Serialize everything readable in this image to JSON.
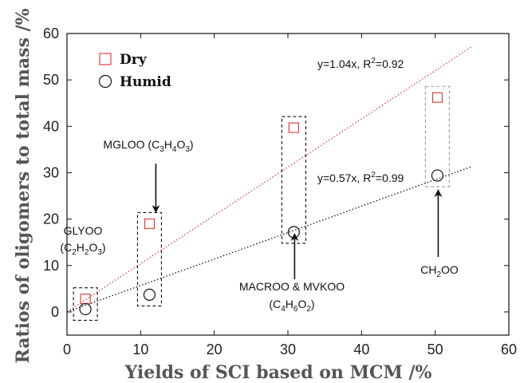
{
  "chart_data": {
    "type": "scatter",
    "xlabel": "Yields of SCI based on MCM /%",
    "ylabel": "Ratios of oligomers to total mass /%",
    "xlim": [
      0,
      60
    ],
    "ylim": [
      -5,
      60
    ],
    "xticks": [
      0,
      10,
      20,
      30,
      40,
      50,
      60
    ],
    "yticks": [
      0,
      10,
      20,
      30,
      40,
      50,
      60
    ],
    "grid": false,
    "legend_position": "top-left",
    "series": [
      {
        "name": "Dry",
        "marker": "square",
        "color": "#e8413c",
        "points": [
          {
            "x": 2.5,
            "y": 2.8
          },
          {
            "x": 11.2,
            "y": 19.0
          },
          {
            "x": 30.8,
            "y": 39.7
          },
          {
            "x": 50.3,
            "y": 46.2
          }
        ],
        "fit": {
          "slope": 1.04,
          "x_end": 55,
          "label": "y=1.04x, R",
          "r2_text": "2",
          "r2_value": "=0.92",
          "style": "dotted"
        }
      },
      {
        "name": "Humid",
        "marker": "circle",
        "color": "#111111",
        "points": [
          {
            "x": 2.5,
            "y": 0.6
          },
          {
            "x": 11.2,
            "y": 3.7
          },
          {
            "x": 30.8,
            "y": 17.2
          },
          {
            "x": 50.3,
            "y": 29.4
          }
        ],
        "fit": {
          "slope": 0.57,
          "x_end": 55,
          "label": "y=0.57x, R",
          "r2_text": "2",
          "r2_value": "=0.99",
          "style": "dotted"
        }
      }
    ],
    "annotations": [
      {
        "id": "glyoo",
        "parts": [
          "GLYOO",
          "(C",
          "2",
          "H",
          "2",
          "O",
          "3",
          ")"
        ]
      },
      {
        "id": "mgloo",
        "parts": [
          "MGLOO (C",
          "3",
          "H",
          "4",
          "O",
          "3",
          ")"
        ]
      },
      {
        "id": "macroo",
        "parts": [
          "MACROO & MVKOO",
          "(C",
          "4",
          "H",
          "6",
          "O",
          "2",
          ")"
        ]
      },
      {
        "id": "ch2oo",
        "parts": [
          "CH",
          "2",
          "OO"
        ]
      }
    ]
  }
}
